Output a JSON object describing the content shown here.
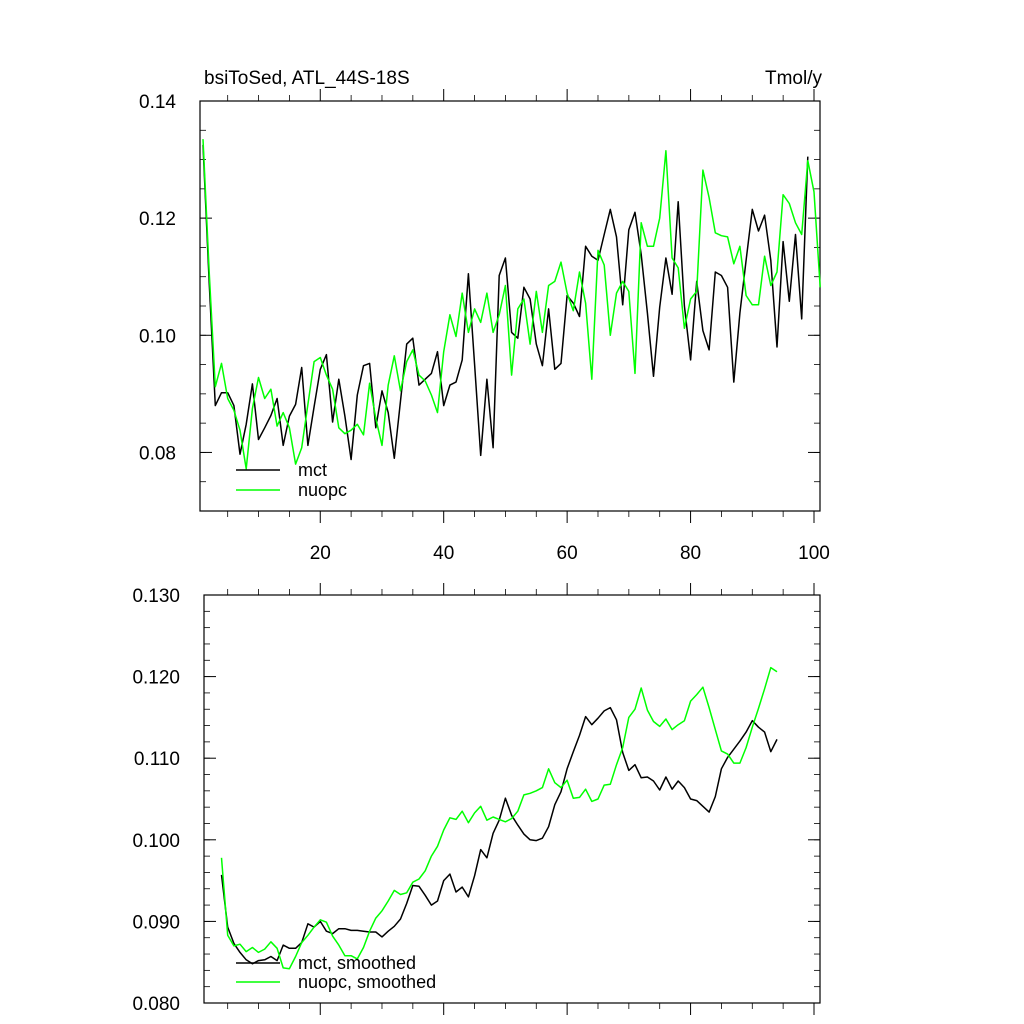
{
  "chart_data": [
    {
      "type": "line",
      "title": "bsiToSed, ATL_44S-18S",
      "units": "Tmol/y",
      "xlim": [
        0,
        101
      ],
      "ylim": [
        0.07,
        0.14
      ],
      "xticks": [
        20,
        40,
        60,
        80,
        100
      ],
      "yticks": [
        0.08,
        0.1,
        0.12,
        0.14
      ],
      "ytick_labels": [
        "0.08",
        "0.10",
        "0.12",
        "0.14"
      ],
      "legend_position": "bottom-left",
      "series": [
        {
          "name": "mct",
          "color": "#000000",
          "x_start": 1,
          "values": [
            0.1325,
            0.109,
            0.088,
            0.0902,
            0.0902,
            0.088,
            0.0797,
            0.0848,
            0.0917,
            0.0822,
            0.0842,
            0.0863,
            0.0892,
            0.0812,
            0.0862,
            0.0882,
            0.0945,
            0.0812,
            0.0878,
            0.0942,
            0.0967,
            0.0852,
            0.0925,
            0.0862,
            0.0788,
            0.0898,
            0.0948,
            0.0952,
            0.0842,
            0.0905,
            0.0868,
            0.079,
            0.0888,
            0.0985,
            0.0995,
            0.0915,
            0.0925,
            0.0935,
            0.0972,
            0.088,
            0.0915,
            0.092,
            0.0958,
            0.1105,
            0.095,
            0.0795,
            0.0925,
            0.0808,
            0.1102,
            0.1132,
            0.1005,
            0.0995,
            0.1082,
            0.1062,
            0.0985,
            0.0948,
            0.1045,
            0.0942,
            0.0952,
            0.1068,
            0.1055,
            0.1032,
            0.1152,
            0.1135,
            0.1128,
            0.1172,
            0.1215,
            0.1168,
            0.1052,
            0.118,
            0.121,
            0.1138,
            0.1038,
            0.093,
            0.1048,
            0.1132,
            0.107,
            0.1228,
            0.105,
            0.0958,
            0.1092,
            0.1008,
            0.0975,
            0.1108,
            0.1102,
            0.1082,
            0.092,
            0.1038,
            0.1128,
            0.1215,
            0.1178,
            0.1205,
            0.1128,
            0.098,
            0.116,
            0.1058,
            0.1172,
            0.1028,
            0.1305
          ]
        },
        {
          "name": "nuopc",
          "color": "#00ff00",
          "x_start": 1,
          "values": [
            0.1335,
            0.1108,
            0.0912,
            0.0952,
            0.0892,
            0.0872,
            0.0838,
            0.0772,
            0.0875,
            0.0928,
            0.0892,
            0.0908,
            0.0845,
            0.0868,
            0.0842,
            0.078,
            0.0808,
            0.0882,
            0.0955,
            0.0962,
            0.0932,
            0.0908,
            0.0842,
            0.0832,
            0.0838,
            0.0848,
            0.083,
            0.0918,
            0.0858,
            0.0812,
            0.0915,
            0.0965,
            0.0905,
            0.0955,
            0.0975,
            0.0932,
            0.0922,
            0.0898,
            0.0868,
            0.0972,
            0.1035,
            0.0998,
            0.1072,
            0.1005,
            0.1045,
            0.1022,
            0.1072,
            0.1005,
            0.1035,
            0.1085,
            0.0932,
            0.1045,
            0.1062,
            0.0985,
            0.1075,
            0.1005,
            0.1085,
            0.1092,
            0.1125,
            0.1072,
            0.1042,
            0.1108,
            0.1055,
            0.0925,
            0.1145,
            0.112,
            0.1,
            0.1072,
            0.1092,
            0.1075,
            0.0935,
            0.1192,
            0.1152,
            0.1152,
            0.12,
            0.1315,
            0.1132,
            0.1115,
            0.1012,
            0.1062,
            0.1075,
            0.1282,
            0.1235,
            0.1175,
            0.117,
            0.1168,
            0.1122,
            0.1152,
            0.1068,
            0.1052,
            0.1052,
            0.1135,
            0.1085,
            0.1108,
            0.124,
            0.1225,
            0.1192,
            0.1172,
            0.1298,
            0.1245,
            0.1082
          ]
        }
      ]
    },
    {
      "type": "line",
      "title": "",
      "units": "",
      "xlim": [
        0,
        101
      ],
      "ylim": [
        0.08,
        0.13
      ],
      "xticks": [
        20,
        40,
        60,
        80,
        100
      ],
      "yticks": [
        0.08,
        0.09,
        0.1,
        0.11,
        0.12,
        0.13
      ],
      "ytick_labels": [
        "0.080",
        "0.090",
        "0.100",
        "0.110",
        "0.120",
        "0.130"
      ],
      "legend_position": "bottom-left",
      "series": [
        {
          "name": "mct, smoothed",
          "color": "#000000",
          "x_start": 4,
          "values": [
            0.0957,
            0.0893,
            0.0873,
            0.0862,
            0.0853,
            0.0848,
            0.0852,
            0.0853,
            0.0857,
            0.0852,
            0.0871,
            0.0867,
            0.0867,
            0.0874,
            0.0897,
            0.0893,
            0.09,
            0.0888,
            0.0885,
            0.0891,
            0.0891,
            0.0889,
            0.0889,
            0.0888,
            0.0887,
            0.0887,
            0.0881,
            0.0888,
            0.0894,
            0.0903,
            0.0922,
            0.0944,
            0.0943,
            0.0932,
            0.092,
            0.0925,
            0.095,
            0.0958,
            0.0936,
            0.0942,
            0.093,
            0.0956,
            0.0988,
            0.0978,
            0.1008,
            0.1024,
            0.1051,
            0.103,
            0.1018,
            0.1007,
            0.1,
            0.0999,
            0.1002,
            0.1016,
            0.1043,
            0.1059,
            0.1087,
            0.1108,
            0.1128,
            0.1151,
            0.1141,
            0.1149,
            0.1158,
            0.1162,
            0.1147,
            0.1107,
            0.1085,
            0.1092,
            0.1076,
            0.1077,
            0.1072,
            0.1061,
            0.1077,
            0.1062,
            0.1072,
            0.1064,
            0.105,
            0.1048,
            0.1041,
            0.1034,
            0.1053,
            0.1087,
            0.1101,
            0.1111,
            0.1121,
            0.1132,
            0.1146,
            0.1138,
            0.1132,
            0.1108,
            0.1123
          ]
        },
        {
          "name": "nuopc, smoothed",
          "color": "#00ff00",
          "x_start": 4,
          "values": [
            0.0978,
            0.0883,
            0.087,
            0.0872,
            0.0863,
            0.0868,
            0.0862,
            0.0866,
            0.0875,
            0.0867,
            0.0843,
            0.0842,
            0.0857,
            0.0874,
            0.0883,
            0.0893,
            0.0902,
            0.0899,
            0.0882,
            0.0871,
            0.0858,
            0.0858,
            0.0854,
            0.0868,
            0.0888,
            0.0904,
            0.0913,
            0.0925,
            0.0938,
            0.0933,
            0.0935,
            0.0948,
            0.0952,
            0.0962,
            0.098,
            0.0992,
            0.1012,
            0.1027,
            0.1025,
            0.1035,
            0.1021,
            0.1033,
            0.1041,
            0.1024,
            0.1028,
            0.1025,
            0.1022,
            0.1026,
            0.1035,
            0.1055,
            0.1057,
            0.106,
            0.1064,
            0.1087,
            0.107,
            0.1064,
            0.1073,
            0.1051,
            0.1052,
            0.1062,
            0.1047,
            0.105,
            0.1067,
            0.1068,
            0.1092,
            0.1113,
            0.115,
            0.116,
            0.1186,
            0.1159,
            0.1145,
            0.1139,
            0.1148,
            0.1135,
            0.1141,
            0.1146,
            0.117,
            0.1178,
            0.1187,
            0.1162,
            0.1135,
            0.1109,
            0.1105,
            0.1094,
            0.1094,
            0.1113,
            0.1138,
            0.1161,
            0.1185,
            0.1211,
            0.1206
          ]
        }
      ]
    }
  ]
}
